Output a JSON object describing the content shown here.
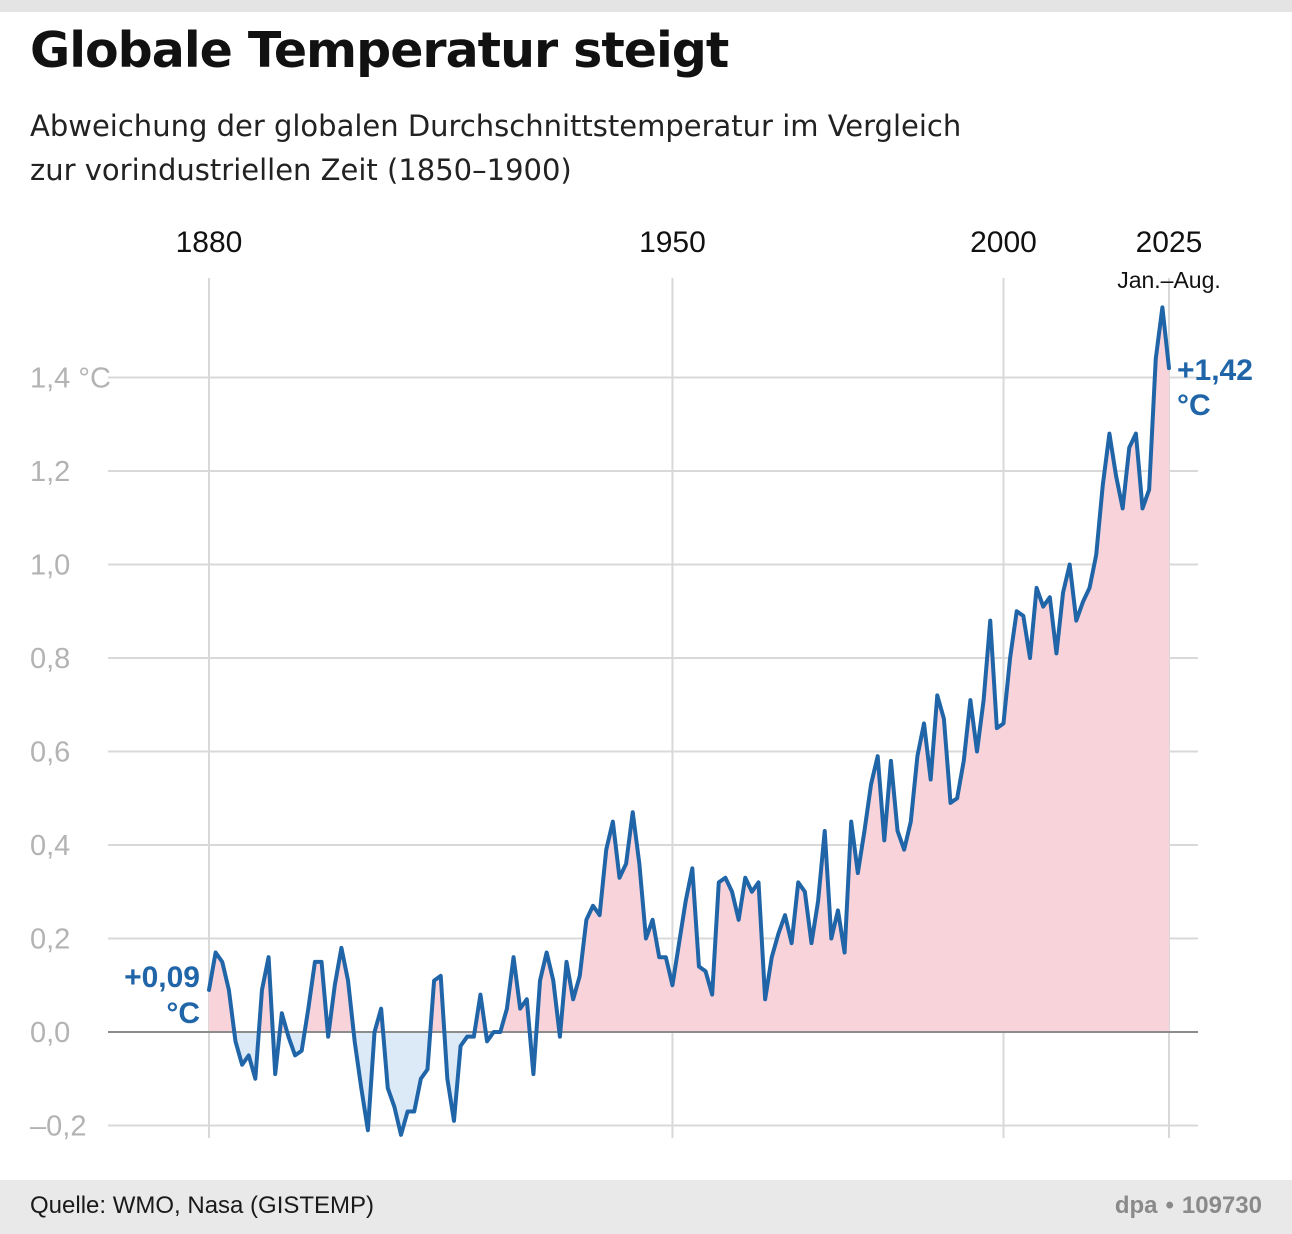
{
  "header": {
    "title": "Globale Temperatur steigt",
    "subtitle_line1": "Abweichung der globalen Durchschnittstemperatur im Vergleich",
    "subtitle_line2": "zur vorindustriellen Zeit (1850–1900)"
  },
  "footer": {
    "source": "Quelle: WMO, Nasa (GISTEMP)",
    "agency": "dpa",
    "separator": "•",
    "graphic_id": "109730"
  },
  "colors": {
    "line": "#1f65a8",
    "positive_fill": "#f9d3da",
    "negative_fill": "#dce9f6",
    "grid": "#d9d9d9",
    "zero_line": "#8c8c8c",
    "y_tick_text": "#b3b3b3",
    "annotation": "#1f65a8"
  },
  "chart_data": {
    "type": "area",
    "x_tick_labels": [
      "1880",
      "1950",
      "2000",
      "2025"
    ],
    "x_tick_values": [
      1880,
      1950,
      2000,
      2025
    ],
    "x_sub_label": "Jan.–Aug.",
    "y_tick_labels": [
      "1,4 °C",
      "1,2",
      "1,0",
      "0,8",
      "0,6",
      "0,4",
      "0,2",
      "0,0",
      "–0,2"
    ],
    "y_tick_values": [
      1.4,
      1.2,
      1.0,
      0.8,
      0.6,
      0.4,
      0.2,
      0.0,
      -0.2
    ],
    "xlim": [
      1880,
      2025
    ],
    "ylim": [
      -0.22,
      1.55
    ],
    "grid": true,
    "start_annotation": {
      "value": "+0,09",
      "unit": "°C"
    },
    "end_annotation": {
      "value": "+1,42",
      "unit": "°C"
    },
    "series": [
      {
        "x": [
          1880,
          1881,
          1882,
          1883,
          1884,
          1885,
          1886,
          1887,
          1888,
          1889,
          1890,
          1891,
          1892,
          1893,
          1894,
          1895,
          1896,
          1897,
          1898,
          1899,
          1900,
          1901,
          1902,
          1903,
          1904,
          1905,
          1906,
          1907,
          1908,
          1909,
          1910,
          1911,
          1912,
          1913,
          1914,
          1915,
          1916,
          1917,
          1918,
          1919,
          1920,
          1921,
          1922,
          1923,
          1924,
          1925,
          1926,
          1927,
          1928,
          1929,
          1930,
          1931,
          1932,
          1933,
          1934,
          1935,
          1936,
          1937,
          1938,
          1939,
          1940,
          1941,
          1942,
          1943,
          1944,
          1945,
          1946,
          1947,
          1948,
          1949,
          1950,
          1951,
          1952,
          1953,
          1954,
          1955,
          1956,
          1957,
          1958,
          1959,
          1960,
          1961,
          1962,
          1963,
          1964,
          1965,
          1966,
          1967,
          1968,
          1969,
          1970,
          1971,
          1972,
          1973,
          1974,
          1975,
          1976,
          1977,
          1978,
          1979,
          1980,
          1981,
          1982,
          1983,
          1984,
          1985,
          1986,
          1987,
          1988,
          1989,
          1990,
          1991,
          1992,
          1993,
          1994,
          1995,
          1996,
          1997,
          1998,
          1999,
          2000,
          2001,
          2002,
          2003,
          2004,
          2005,
          2006,
          2007,
          2008,
          2009,
          2010,
          2011,
          2012,
          2013,
          2014,
          2015,
          2016,
          2017,
          2018,
          2019,
          2020,
          2021,
          2022,
          2023,
          2024,
          2025
        ],
        "y": [
          0.09,
          0.17,
          0.15,
          0.09,
          -0.02,
          -0.07,
          -0.05,
          -0.1,
          0.09,
          0.16,
          -0.09,
          0.04,
          -0.01,
          -0.05,
          -0.04,
          0.05,
          0.15,
          0.15,
          -0.01,
          0.1,
          0.18,
          0.11,
          -0.02,
          -0.12,
          -0.21,
          0.0,
          0.05,
          -0.12,
          -0.16,
          -0.22,
          -0.17,
          -0.17,
          -0.1,
          -0.08,
          0.11,
          0.12,
          -0.1,
          -0.19,
          -0.03,
          -0.01,
          -0.01,
          0.08,
          -0.02,
          0.0,
          0.0,
          0.05,
          0.16,
          0.05,
          0.07,
          -0.09,
          0.11,
          0.17,
          0.11,
          -0.01,
          0.15,
          0.07,
          0.12,
          0.24,
          0.27,
          0.25,
          0.39,
          0.45,
          0.33,
          0.36,
          0.47,
          0.36,
          0.2,
          0.24,
          0.16,
          0.16,
          0.1,
          0.19,
          0.28,
          0.35,
          0.14,
          0.13,
          0.08,
          0.32,
          0.33,
          0.3,
          0.24,
          0.33,
          0.3,
          0.32,
          0.07,
          0.16,
          0.21,
          0.25,
          0.19,
          0.32,
          0.3,
          0.19,
          0.28,
          0.43,
          0.2,
          0.26,
          0.17,
          0.45,
          0.34,
          0.43,
          0.53,
          0.59,
          0.41,
          0.58,
          0.43,
          0.39,
          0.45,
          0.59,
          0.66,
          0.54,
          0.72,
          0.67,
          0.49,
          0.5,
          0.58,
          0.71,
          0.6,
          0.71,
          0.88,
          0.65,
          0.66,
          0.8,
          0.9,
          0.89,
          0.8,
          0.95,
          0.91,
          0.93,
          0.81,
          0.94,
          1.0,
          0.88,
          0.92,
          0.95,
          1.02,
          1.17,
          1.28,
          1.19,
          1.12,
          1.25,
          1.28,
          1.12,
          1.16,
          1.44,
          1.55,
          1.42
        ]
      }
    ]
  }
}
